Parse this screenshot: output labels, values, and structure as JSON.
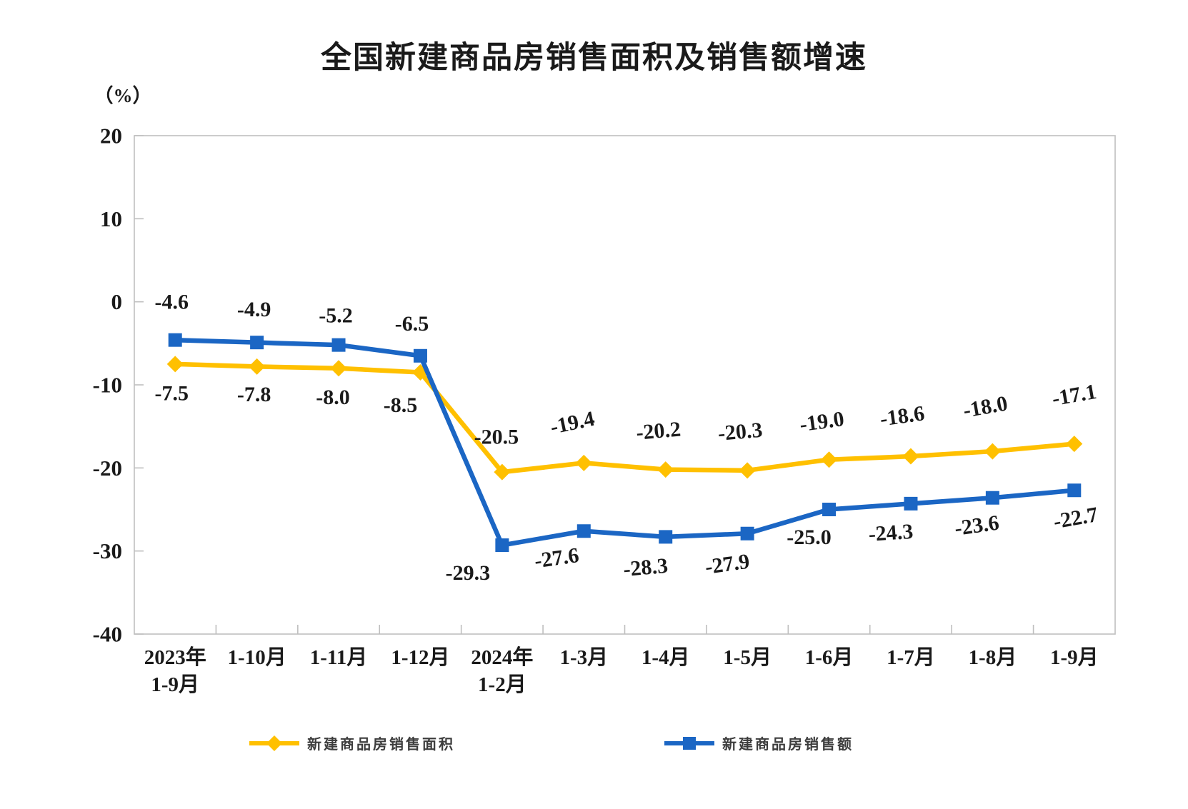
{
  "title": "全国新建商品房销售面积及销售额增速",
  "chart_data": {
    "type": "line",
    "title": "全国新建商品房销售面积及销售额增速",
    "ylabel": "（%）",
    "xlabel": "",
    "ylim": [
      -40,
      20
    ],
    "yticks": [
      20,
      10,
      0,
      -10,
      -20,
      -30,
      -40
    ],
    "grid": false,
    "legend_position": "bottom",
    "categories": [
      "2023年\n1-9月",
      "1-10月",
      "1-11月",
      "1-12月",
      "2024年\n1-2月",
      "1-3月",
      "1-4月",
      "1-5月",
      "1-6月",
      "1-7月",
      "1-8月",
      "1-9月"
    ],
    "series": [
      {
        "name": "新建商品房销售面积",
        "marker": "diamond",
        "color": "#FFC000",
        "values": [
          -7.5,
          -7.8,
          -8.0,
          -8.5,
          -20.5,
          -19.4,
          -20.2,
          -20.3,
          -19.0,
          -18.6,
          -18.0,
          -17.1
        ],
        "labels": [
          "-7.5",
          "-7.8",
          "-8.0",
          "-8.5",
          "-20.5",
          "-19.4",
          "-20.2",
          "-20.3",
          "-19.0",
          "-18.6",
          "-18.0",
          "-17.1"
        ]
      },
      {
        "name": "新建商品房销售额",
        "marker": "square",
        "color": "#1B66C4",
        "values": [
          -4.6,
          -4.9,
          -5.2,
          -6.5,
          -29.3,
          -27.6,
          -28.3,
          -27.9,
          -25.0,
          -24.3,
          -23.6,
          -22.7
        ],
        "labels": [
          "-4.6",
          "-4.9",
          "-5.2",
          "-6.5",
          "-29.3",
          "-27.6",
          "-28.3",
          "-27.9",
          "-25.0",
          "-24.3",
          "-23.6",
          "-22.7"
        ]
      }
    ],
    "axis_color": "#bfbfbf",
    "label_color": "#1a1a1a"
  }
}
